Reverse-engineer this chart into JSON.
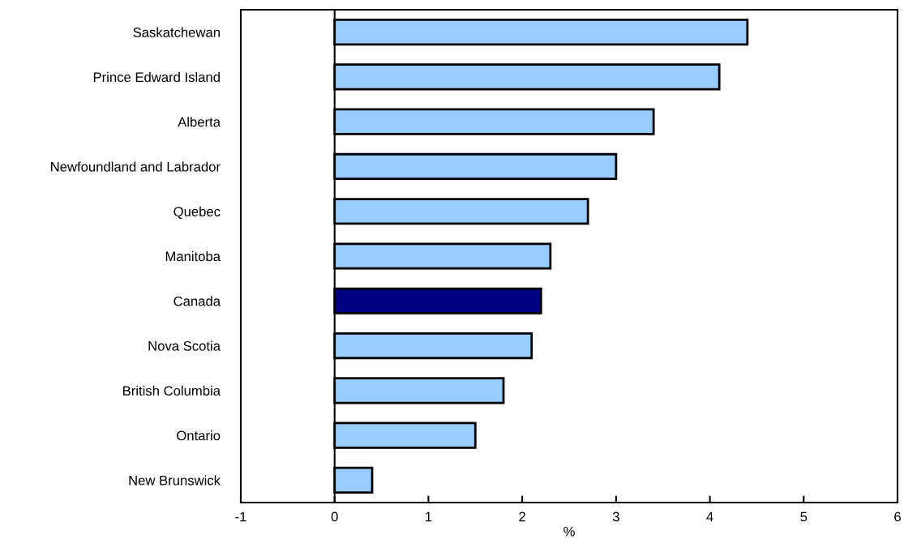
{
  "chart_data": {
    "type": "bar",
    "orientation": "horizontal",
    "xlabel": "%",
    "categories": [
      "Saskatchewan",
      "Prince Edward Island",
      "Alberta",
      "Newfoundland and Labrador",
      "Quebec",
      "Manitoba",
      "Canada",
      "Nova Scotia",
      "British Columbia",
      "Ontario",
      "New Brunswick"
    ],
    "values": [
      4.4,
      4.1,
      3.4,
      3.0,
      2.7,
      2.3,
      2.2,
      2.1,
      1.8,
      1.5,
      0.4
    ],
    "colors": [
      "#99ccff",
      "#99ccff",
      "#99ccff",
      "#99ccff",
      "#99ccff",
      "#99ccff",
      "#000080",
      "#99ccff",
      "#99ccff",
      "#99ccff",
      "#99ccff"
    ],
    "xlim": [
      -1,
      6
    ],
    "xticks": [
      -1,
      0,
      1,
      2,
      3,
      4,
      5,
      6
    ],
    "ref_lines": [
      {
        "axis": "x",
        "value": 0,
        "color": "#000000"
      }
    ]
  }
}
